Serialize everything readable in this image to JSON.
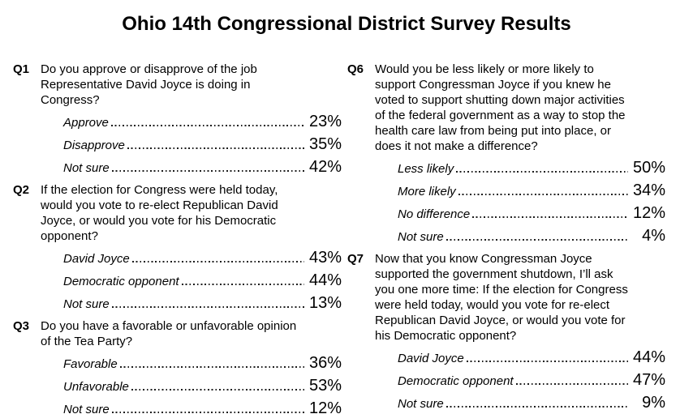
{
  "title": "Ohio 14th Congressional District Survey Results",
  "colors": {
    "text": "#000000",
    "background": "#ffffff"
  },
  "columns": {
    "left": [
      {
        "id": "Q1",
        "text": "Do you approve or disapprove of the job\nRepresentative David Joyce is doing in\nCongress?",
        "answers": [
          {
            "label": "Approve",
            "value": "23%"
          },
          {
            "label": "Disapprove",
            "value": "35%"
          },
          {
            "label": "Not sure",
            "value": "42%"
          }
        ]
      },
      {
        "id": "Q2",
        "text": "If the election for Congress were held today,\nwould you vote to re-elect Republican David\nJoyce, or would you vote for his Democratic\nopponent?",
        "answers": [
          {
            "label": "David Joyce",
            "value": "43%"
          },
          {
            "label": "Democratic opponent",
            "value": "44%"
          },
          {
            "label": "Not sure",
            "value": "13%"
          }
        ]
      },
      {
        "id": "Q3",
        "text": "Do you have a favorable or unfavorable opinion\nof the Tea Party?",
        "answers": [
          {
            "label": "Favorable",
            "value": "36%"
          },
          {
            "label": "Unfavorable",
            "value": "53%"
          },
          {
            "label": "Not sure",
            "value": "12%"
          }
        ]
      }
    ],
    "right": [
      {
        "id": "Q6",
        "text": "Would you be less likely or more likely to\nsupport Congressman Joyce if you knew he\nvoted to support shutting down major activities\nof the federal government as a way to stop the\nhealth care law from being put into place, or\ndoes it not make a difference?",
        "answers": [
          {
            "label": "Less likely",
            "value": "50%"
          },
          {
            "label": "More likely",
            "value": "34%"
          },
          {
            "label": "No difference",
            "value": "12%"
          },
          {
            "label": "Not sure",
            "value": "4%"
          }
        ]
      },
      {
        "id": "Q7",
        "text": "Now that you know Congressman Joyce\nsupported the government shutdown, I’ll ask\nyou one more time: If the election for Congress\nwere held today, would you vote for re-elect\nRepublican David Joyce, or would you vote for\nhis Democratic opponent?",
        "answers": [
          {
            "label": "David Joyce",
            "value": "44%"
          },
          {
            "label": "Democratic opponent",
            "value": "47%"
          },
          {
            "label": "Not sure",
            "value": "9%"
          }
        ]
      }
    ]
  }
}
